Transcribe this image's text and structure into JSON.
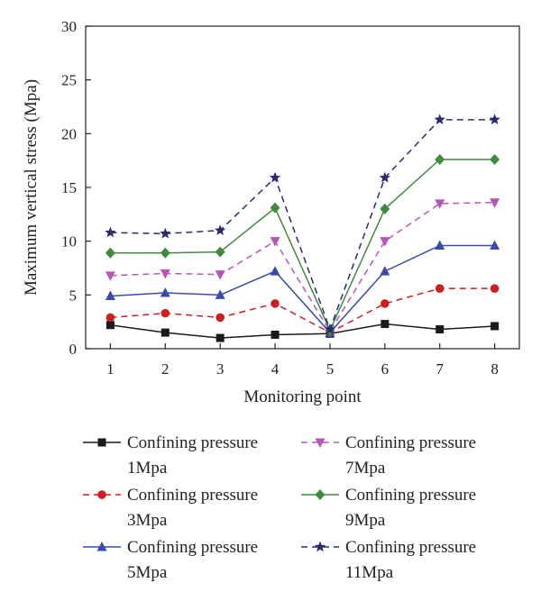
{
  "chart_data": {
    "type": "line",
    "xlabel": "Monitoring point",
    "ylabel": "Maximum vertical stress (Mpa)",
    "categories": [
      "1",
      "2",
      "3",
      "4",
      "5",
      "6",
      "7",
      "8"
    ],
    "x": [
      1,
      2,
      3,
      4,
      5,
      6,
      7,
      8
    ],
    "ylim": [
      0,
      30
    ],
    "yticks": [
      0,
      5,
      10,
      15,
      20,
      25,
      30
    ],
    "grid": false,
    "legend_position": "bottom",
    "series": [
      {
        "name": "Confining pressure 1Mpa",
        "legend_lines": [
          "Confining pressure",
          "1Mpa"
        ],
        "values": [
          2.2,
          1.5,
          1.0,
          1.3,
          1.4,
          2.3,
          1.8,
          2.1
        ],
        "color": "#1a1a1a",
        "marker": "square",
        "dashed": false
      },
      {
        "name": "Confining pressure 3Mpa",
        "legend_lines": [
          "Confining pressure",
          "3Mpa"
        ],
        "values": [
          2.9,
          3.3,
          2.9,
          4.2,
          1.5,
          4.2,
          5.6,
          5.6
        ],
        "color": "#cc1f1f",
        "marker": "circle",
        "dashed": true
      },
      {
        "name": "Confining pressure 5Mpa",
        "legend_lines": [
          "Confining pressure",
          "5Mpa"
        ],
        "values": [
          4.9,
          5.2,
          5.0,
          7.2,
          1.5,
          7.2,
          9.6,
          9.6
        ],
        "color": "#3a4aa8",
        "marker": "triangle-up",
        "dashed": false
      },
      {
        "name": "Confining pressure 7Mpa",
        "legend_lines": [
          "Confining pressure",
          "7Mpa"
        ],
        "values": [
          6.8,
          7.0,
          6.9,
          10.0,
          1.6,
          10.0,
          13.5,
          13.6
        ],
        "color": "#b855b8",
        "marker": "triangle-down",
        "dashed": true
      },
      {
        "name": "Confining pressure 9Mpa",
        "legend_lines": [
          "Confining pressure",
          "9Mpa"
        ],
        "values": [
          8.9,
          8.9,
          9.0,
          13.1,
          1.7,
          13.0,
          17.6,
          17.6
        ],
        "color": "#3f8a3f",
        "marker": "diamond",
        "dashed": false
      },
      {
        "name": "Confining pressure 11Mpa",
        "legend_lines": [
          "Confining pressure",
          "11Mpa"
        ],
        "values": [
          10.8,
          10.7,
          11.0,
          15.9,
          1.8,
          15.9,
          21.3,
          21.3
        ],
        "color": "#2a2a72",
        "marker": "star",
        "dashed": true
      }
    ]
  }
}
